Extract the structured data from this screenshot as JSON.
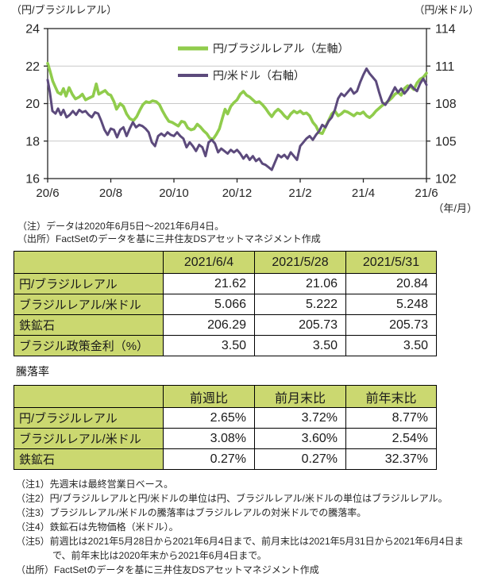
{
  "colors": {
    "green": "#90cc4c",
    "purple": "#5c4a7c",
    "table_header_bg": "#cbd870",
    "grid": "#c9c9c9",
    "axis": "#262626",
    "text": "#262626"
  },
  "chart": {
    "left_axis_title": "（円/ブラジルレアル）",
    "right_axis_title": "（円/米ドル）",
    "x_axis_title": "（年/月）",
    "notes": [
      "（注）データは2020年6月5日～2021年6月4日。",
      "（出所）FactSetのデータを基に三井住友DSアセットマネジメント作成"
    ]
  },
  "chart_data": {
    "type": "line",
    "title": "",
    "grid": "horizontal",
    "legend_position": "top-center-inside",
    "x_range": [
      0,
      12
    ],
    "x_tick_labels": [
      "20/6",
      "20/8",
      "20/10",
      "20/12",
      "21/2",
      "21/4",
      "21/6"
    ],
    "left_axis": {
      "title": "（円/ブラジルレアル）",
      "min": 16,
      "max": 24,
      "ticks": [
        24,
        22,
        20,
        18,
        16
      ]
    },
    "right_axis": {
      "title": "（円/米ドル）",
      "min": 102,
      "max": 114,
      "ticks": [
        114,
        111,
        108,
        105,
        102
      ]
    },
    "series": [
      {
        "name": "円/ブラジルレアル（左軸）",
        "axis": "left",
        "color": "#90cc4c",
        "width": 3.6,
        "points": [
          [
            0,
            22.15
          ],
          [
            0.08,
            21.7
          ],
          [
            0.16,
            21.2
          ],
          [
            0.24,
            20.9
          ],
          [
            0.32,
            20.6
          ],
          [
            0.42,
            20.5
          ],
          [
            0.5,
            20.8
          ],
          [
            0.58,
            20.4
          ],
          [
            0.68,
            20.85
          ],
          [
            0.78,
            20.5
          ],
          [
            0.88,
            20.25
          ],
          [
            1,
            20.35
          ],
          [
            1.1,
            20.5
          ],
          [
            1.2,
            20.2
          ],
          [
            1.32,
            20.3
          ],
          [
            1.44,
            20.4
          ],
          [
            1.54,
            21.05
          ],
          [
            1.62,
            20.5
          ],
          [
            1.72,
            20.6
          ],
          [
            1.82,
            20.7
          ],
          [
            1.92,
            20.5
          ],
          [
            2,
            20.45
          ],
          [
            2.1,
            20.1
          ],
          [
            2.18,
            19.7
          ],
          [
            2.3,
            20
          ],
          [
            2.4,
            19.85
          ],
          [
            2.5,
            19.45
          ],
          [
            2.6,
            19.2
          ],
          [
            2.72,
            19.1
          ],
          [
            2.82,
            19.3
          ],
          [
            2.92,
            19.65
          ],
          [
            3.02,
            19.95
          ],
          [
            3.12,
            20.1
          ],
          [
            3.22,
            20.05
          ],
          [
            3.32,
            20.15
          ],
          [
            3.44,
            20.1
          ],
          [
            3.54,
            19.95
          ],
          [
            3.64,
            19.6
          ],
          [
            3.74,
            19.3
          ],
          [
            3.84,
            19.05
          ],
          [
            3.94,
            19
          ],
          [
            4.04,
            18.9
          ],
          [
            4.14,
            18.8
          ],
          [
            4.24,
            19.05
          ],
          [
            4.34,
            19
          ],
          [
            4.44,
            18.7
          ],
          [
            4.54,
            18.6
          ],
          [
            4.64,
            18.65
          ],
          [
            4.74,
            18.9
          ],
          [
            4.84,
            18.75
          ],
          [
            4.94,
            18.55
          ],
          [
            5.04,
            18.4
          ],
          [
            5.14,
            18.15
          ],
          [
            5.24,
            18.1
          ],
          [
            5.34,
            18.35
          ],
          [
            5.44,
            18.65
          ],
          [
            5.54,
            19.25
          ],
          [
            5.62,
            19.7
          ],
          [
            5.7,
            19.45
          ],
          [
            5.8,
            19.85
          ],
          [
            5.9,
            20.05
          ],
          [
            6,
            20.2
          ],
          [
            6.1,
            20.5
          ],
          [
            6.2,
            20.65
          ],
          [
            6.3,
            20.45
          ],
          [
            6.4,
            20.35
          ],
          [
            6.5,
            20.2
          ],
          [
            6.6,
            20.05
          ],
          [
            6.7,
            20.1
          ],
          [
            6.8,
            19.95
          ],
          [
            6.9,
            19.75
          ],
          [
            7,
            19.5
          ],
          [
            7.1,
            19.3
          ],
          [
            7.2,
            19.55
          ],
          [
            7.3,
            19.7
          ],
          [
            7.4,
            19.55
          ],
          [
            7.5,
            19.35
          ],
          [
            7.6,
            19.2
          ],
          [
            7.7,
            19.45
          ],
          [
            7.8,
            19.6
          ],
          [
            7.9,
            19.5
          ],
          [
            8,
            19.6
          ],
          [
            8.1,
            19.45
          ],
          [
            8.2,
            19.5
          ],
          [
            8.3,
            19.35
          ],
          [
            8.4,
            19
          ],
          [
            8.5,
            18.8
          ],
          [
            8.6,
            18.45
          ],
          [
            8.7,
            18.4
          ],
          [
            8.8,
            18.75
          ],
          [
            8.9,
            19.1
          ],
          [
            9,
            19.45
          ],
          [
            9.1,
            19.6
          ],
          [
            9.2,
            19.35
          ],
          [
            9.3,
            19.45
          ],
          [
            9.4,
            19.6
          ],
          [
            9.5,
            19.55
          ],
          [
            9.6,
            19.45
          ],
          [
            9.7,
            19.35
          ],
          [
            9.8,
            19.5
          ],
          [
            9.9,
            19.45
          ],
          [
            10,
            19.55
          ],
          [
            10.1,
            19.35
          ],
          [
            10.2,
            19.25
          ],
          [
            10.3,
            19.4
          ],
          [
            10.4,
            19.6
          ],
          [
            10.5,
            19.75
          ],
          [
            10.6,
            19.9
          ],
          [
            10.7,
            20
          ],
          [
            10.8,
            20.15
          ],
          [
            10.9,
            20.3
          ],
          [
            11,
            20.5
          ],
          [
            11.1,
            20.6
          ],
          [
            11.2,
            20.45
          ],
          [
            11.3,
            20.8
          ],
          [
            11.4,
            20.95
          ],
          [
            11.5,
            20.9
          ],
          [
            11.6,
            20.75
          ],
          [
            11.7,
            21.1
          ],
          [
            11.8,
            21.3
          ],
          [
            11.9,
            21.4
          ],
          [
            12,
            21.62
          ]
        ]
      },
      {
        "name": "円/米ドル（右軸）",
        "axis": "right",
        "color": "#5c4a7c",
        "width": 3,
        "points": [
          [
            0,
            109.9
          ],
          [
            0.07,
            108.9
          ],
          [
            0.15,
            107.4
          ],
          [
            0.25,
            107.2
          ],
          [
            0.33,
            107.6
          ],
          [
            0.42,
            107.1
          ],
          [
            0.5,
            107.5
          ],
          [
            0.6,
            106.9
          ],
          [
            0.7,
            107.1
          ],
          [
            0.8,
            107.4
          ],
          [
            0.9,
            107.1
          ],
          [
            1,
            107.5
          ],
          [
            1.1,
            107.3
          ],
          [
            1.2,
            107.4
          ],
          [
            1.3,
            107.1
          ],
          [
            1.4,
            106.9
          ],
          [
            1.5,
            107.3
          ],
          [
            1.6,
            107.2
          ],
          [
            1.7,
            106.6
          ],
          [
            1.8,
            105.9
          ],
          [
            1.9,
            105.5
          ],
          [
            2,
            106
          ],
          [
            2.1,
            105.9
          ],
          [
            2.2,
            105.3
          ],
          [
            2.3,
            105.9
          ],
          [
            2.4,
            106.1
          ],
          [
            2.5,
            105.4
          ],
          [
            2.6,
            106
          ],
          [
            2.7,
            106.5
          ],
          [
            2.8,
            106.1
          ],
          [
            2.9,
            106.3
          ],
          [
            3,
            106.2
          ],
          [
            3.1,
            106
          ],
          [
            3.2,
            105.7
          ],
          [
            3.3,
            104.9
          ],
          [
            3.4,
            104.6
          ],
          [
            3.5,
            105.4
          ],
          [
            3.6,
            105.6
          ],
          [
            3.7,
            105.4
          ],
          [
            3.8,
            105.7
          ],
          [
            3.9,
            105.5
          ],
          [
            4,
            105.4
          ],
          [
            4.1,
            105.7
          ],
          [
            4.2,
            105.4
          ],
          [
            4.3,
            105.2
          ],
          [
            4.4,
            104.5
          ],
          [
            4.5,
            104.9
          ],
          [
            4.6,
            104.6
          ],
          [
            4.7,
            104.2
          ],
          [
            4.8,
            104.7
          ],
          [
            4.9,
            104.5
          ],
          [
            5,
            103.8
          ],
          [
            5.1,
            104.9
          ],
          [
            5.2,
            105.1
          ],
          [
            5.3,
            104.8
          ],
          [
            5.4,
            104.1
          ],
          [
            5.5,
            104.4
          ],
          [
            5.6,
            104.2
          ],
          [
            5.7,
            104
          ],
          [
            5.8,
            104.3
          ],
          [
            5.9,
            104.1
          ],
          [
            6,
            104.3
          ],
          [
            6.1,
            104
          ],
          [
            6.2,
            103.6
          ],
          [
            6.3,
            103.9
          ],
          [
            6.4,
            103.5
          ],
          [
            6.5,
            103.8
          ],
          [
            6.6,
            103.4
          ],
          [
            6.7,
            103.6
          ],
          [
            6.8,
            103.2
          ],
          [
            6.9,
            103.1
          ],
          [
            7,
            102.9
          ],
          [
            7.1,
            102.7
          ],
          [
            7.2,
            103.3
          ],
          [
            7.3,
            103.9
          ],
          [
            7.4,
            103.7
          ],
          [
            7.5,
            103.9
          ],
          [
            7.6,
            103.6
          ],
          [
            7.7,
            104.1
          ],
          [
            7.8,
            103.8
          ],
          [
            7.9,
            103.5
          ],
          [
            8,
            104.6
          ],
          [
            8.1,
            104.9
          ],
          [
            8.2,
            105.2
          ],
          [
            8.3,
            105.4
          ],
          [
            8.4,
            105.1
          ],
          [
            8.5,
            105.5
          ],
          [
            8.6,
            105.8
          ],
          [
            8.7,
            106.3
          ],
          [
            8.8,
            106.1
          ],
          [
            8.9,
            106.6
          ],
          [
            9,
            106.9
          ],
          [
            9.1,
            107.5
          ],
          [
            9.2,
            108.4
          ],
          [
            9.3,
            108.8
          ],
          [
            9.4,
            108.6
          ],
          [
            9.5,
            108.9
          ],
          [
            9.6,
            109.2
          ],
          [
            9.7,
            108.8
          ],
          [
            9.8,
            109
          ],
          [
            9.9,
            109.7
          ],
          [
            10,
            110.3
          ],
          [
            10.1,
            110.8
          ],
          [
            10.2,
            110.4
          ],
          [
            10.3,
            110.1
          ],
          [
            10.4,
            109.8
          ],
          [
            10.5,
            108.9
          ],
          [
            10.6,
            108.1
          ],
          [
            10.7,
            107.9
          ],
          [
            10.8,
            108.3
          ],
          [
            10.9,
            108.8
          ],
          [
            11,
            109.3
          ],
          [
            11.1,
            108.9
          ],
          [
            11.2,
            109.2
          ],
          [
            11.3,
            108.8
          ],
          [
            11.4,
            109.1
          ],
          [
            11.5,
            109.5
          ],
          [
            11.6,
            109.2
          ],
          [
            11.7,
            109
          ],
          [
            11.8,
            109.6
          ],
          [
            11.9,
            110
          ],
          [
            12,
            109.5
          ]
        ]
      }
    ]
  },
  "table1": {
    "headers": [
      "",
      "2021/6/4",
      "2021/5/28",
      "2021/5/31"
    ],
    "rows": [
      {
        "label": "円/ブラジルレアル",
        "values": [
          "21.62",
          "21.06",
          "20.84"
        ]
      },
      {
        "label": "ブラジルレアル/米ドル",
        "values": [
          "5.066",
          "5.222",
          "5.248"
        ]
      },
      {
        "label": "鉄鉱石",
        "values": [
          "206.29",
          "205.73",
          "205.73"
        ]
      },
      {
        "label": "ブラジル政策金利（%）",
        "values": [
          "3.50",
          "3.50",
          "3.50"
        ]
      }
    ]
  },
  "section2_title": "騰落率",
  "table2": {
    "headers": [
      "",
      "前週比",
      "前月末比",
      "前年末比"
    ],
    "rows": [
      {
        "label": "円/ブラジルレアル",
        "values": [
          "2.65%",
          "3.72%",
          "8.77%"
        ]
      },
      {
        "label": "ブラジルレアル/米ドル",
        "values": [
          "3.08%",
          "3.60%",
          "2.54%"
        ]
      },
      {
        "label": "鉄鉱石",
        "values": [
          "0.27%",
          "0.27%",
          "32.37%"
        ]
      }
    ]
  },
  "footnotes": [
    "（注1）先週末は最終営業日ベース。",
    "（注2）円/ブラジルレアルと円/米ドルの単位は円、ブラジルレアル/米ドルの単位はブラジルレアル。",
    "（注3）ブラジルレアル/米ドルの騰落率はブラジルレアルの対米ドルでの騰落率。",
    "（注4）鉄鉱石は先物価格（米ドル）。",
    "（注5）前週比は2021年5月28日から2021年6月4日まで、前月末比は2021年5月31日から2021年6月4日まで、前年末比は2020年末から2021年6月4日まで。",
    "（出所）FactSetのデータを基に三井住友DSアセットマネジメント作成"
  ]
}
